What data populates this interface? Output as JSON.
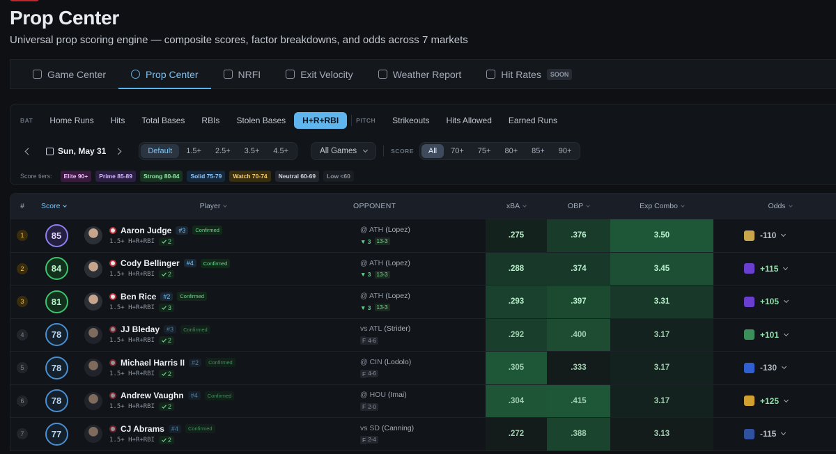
{
  "header": {
    "title": "Prop Center",
    "subtitle": "Universal prop scoring engine — composite scores, factor breakdowns, and odds across 7 markets"
  },
  "tabs": [
    {
      "label": "Game Center"
    },
    {
      "label": "Prop Center",
      "active": true
    },
    {
      "label": "NRFI"
    },
    {
      "label": "Exit Velocity"
    },
    {
      "label": "Weather Report"
    },
    {
      "label": "Hit Rates",
      "badge": "SOON"
    }
  ],
  "markets": {
    "bat_label": "BAT",
    "bat": [
      {
        "label": "Home Runs"
      },
      {
        "label": "Hits"
      },
      {
        "label": "Total Bases"
      },
      {
        "label": "RBIs"
      },
      {
        "label": "Stolen Bases"
      },
      {
        "label": "H+R+RBI",
        "active": true
      }
    ],
    "pitch_label": "PITCH",
    "pitch": [
      {
        "label": "Strikeouts"
      },
      {
        "label": "Hits Allowed"
      },
      {
        "label": "Earned Runs"
      }
    ]
  },
  "filters": {
    "date": "Sun, May 31",
    "lines": [
      {
        "label": "Default",
        "active": true
      },
      {
        "label": "1.5+"
      },
      {
        "label": "2.5+"
      },
      {
        "label": "3.5+"
      },
      {
        "label": "4.5+"
      }
    ],
    "games": "All Games",
    "score_label": "SCORE",
    "scores": [
      {
        "label": "All",
        "active": true
      },
      {
        "label": "70+"
      },
      {
        "label": "75+"
      },
      {
        "label": "80+"
      },
      {
        "label": "85+"
      },
      {
        "label": "90+"
      }
    ]
  },
  "tiers": {
    "label": "Score tiers:",
    "items": [
      "Elite 90+",
      "Prime 85-89",
      "Strong 80-84",
      "Solid 75-79",
      "Watch 70-74",
      "Neutral 60-69",
      "Low <60"
    ]
  },
  "table": {
    "columns": [
      "#",
      "Score",
      "Player",
      "OPPONENT",
      "xBA",
      "OBP",
      "Exp Combo",
      "Odds"
    ],
    "rows": [
      {
        "rank": "1",
        "score": "85",
        "player": "Aaron Judge",
        "slot": "#3",
        "status": "Confirmed",
        "prop": "1.5+ H+R+RBI",
        "streak": "2",
        "opp": "@ ATH",
        "pitcher": "(Lopez)",
        "note": "▼ 3",
        "record": "13-3",
        "xba": ".275",
        "obp": ".376",
        "exp": "3.50",
        "odds": "-110"
      },
      {
        "rank": "2",
        "score": "84",
        "player": "Cody Bellinger",
        "slot": "#4",
        "status": "Confirmed",
        "prop": "1.5+ H+R+RBI",
        "streak": "2",
        "opp": "@ ATH",
        "pitcher": "(Lopez)",
        "note": "▼ 3",
        "record": "13-3",
        "xba": ".288",
        "obp": ".374",
        "exp": "3.45",
        "odds": "+115"
      },
      {
        "rank": "3",
        "score": "81",
        "player": "Ben Rice",
        "slot": "#2",
        "status": "Confirmed",
        "prop": "1.5+ H+R+RBI",
        "streak": "3",
        "opp": "@ ATH",
        "pitcher": "(Lopez)",
        "note": "▼ 3",
        "record": "13-3",
        "xba": ".293",
        "obp": ".397",
        "exp": "3.31",
        "odds": "+105"
      },
      {
        "rank": "4",
        "score": "78",
        "player": "JJ Bleday",
        "slot": "#3",
        "status": "Confirmed",
        "prop": "1.5+ H+R+RBI",
        "streak": "2",
        "opp": "vs ATL",
        "pitcher": "(Strider)",
        "note": "F",
        "record": "4-6",
        "xba": ".292",
        "obp": ".400",
        "exp": "3.17",
        "odds": "+101"
      },
      {
        "rank": "5",
        "score": "78",
        "player": "Michael Harris II",
        "slot": "#2",
        "status": "Confirmed",
        "prop": "1.5+ H+R+RBI",
        "streak": "2",
        "opp": "@ CIN",
        "pitcher": "(Lodolo)",
        "note": "F",
        "record": "4-6",
        "xba": ".305",
        "obp": ".333",
        "exp": "3.17",
        "odds": "-130"
      },
      {
        "rank": "6",
        "score": "78",
        "player": "Andrew Vaughn",
        "slot": "#4",
        "status": "Confirmed",
        "prop": "1.5+ H+R+RBI",
        "streak": "2",
        "opp": "@ HOU",
        "pitcher": "(Imai)",
        "note": "F",
        "record": "2-0",
        "xba": ".304",
        "obp": ".415",
        "exp": "3.17",
        "odds": "+125"
      },
      {
        "rank": "7",
        "score": "77",
        "player": "CJ Abrams",
        "slot": "#4",
        "status": "Confirmed",
        "prop": "1.5+ H+R+RBI",
        "streak": "2",
        "opp": "vs SD",
        "pitcher": "(Canning)",
        "note": "F",
        "record": "2-4",
        "xba": ".272",
        "obp": ".388",
        "exp": "3.13",
        "odds": "-115"
      }
    ]
  }
}
